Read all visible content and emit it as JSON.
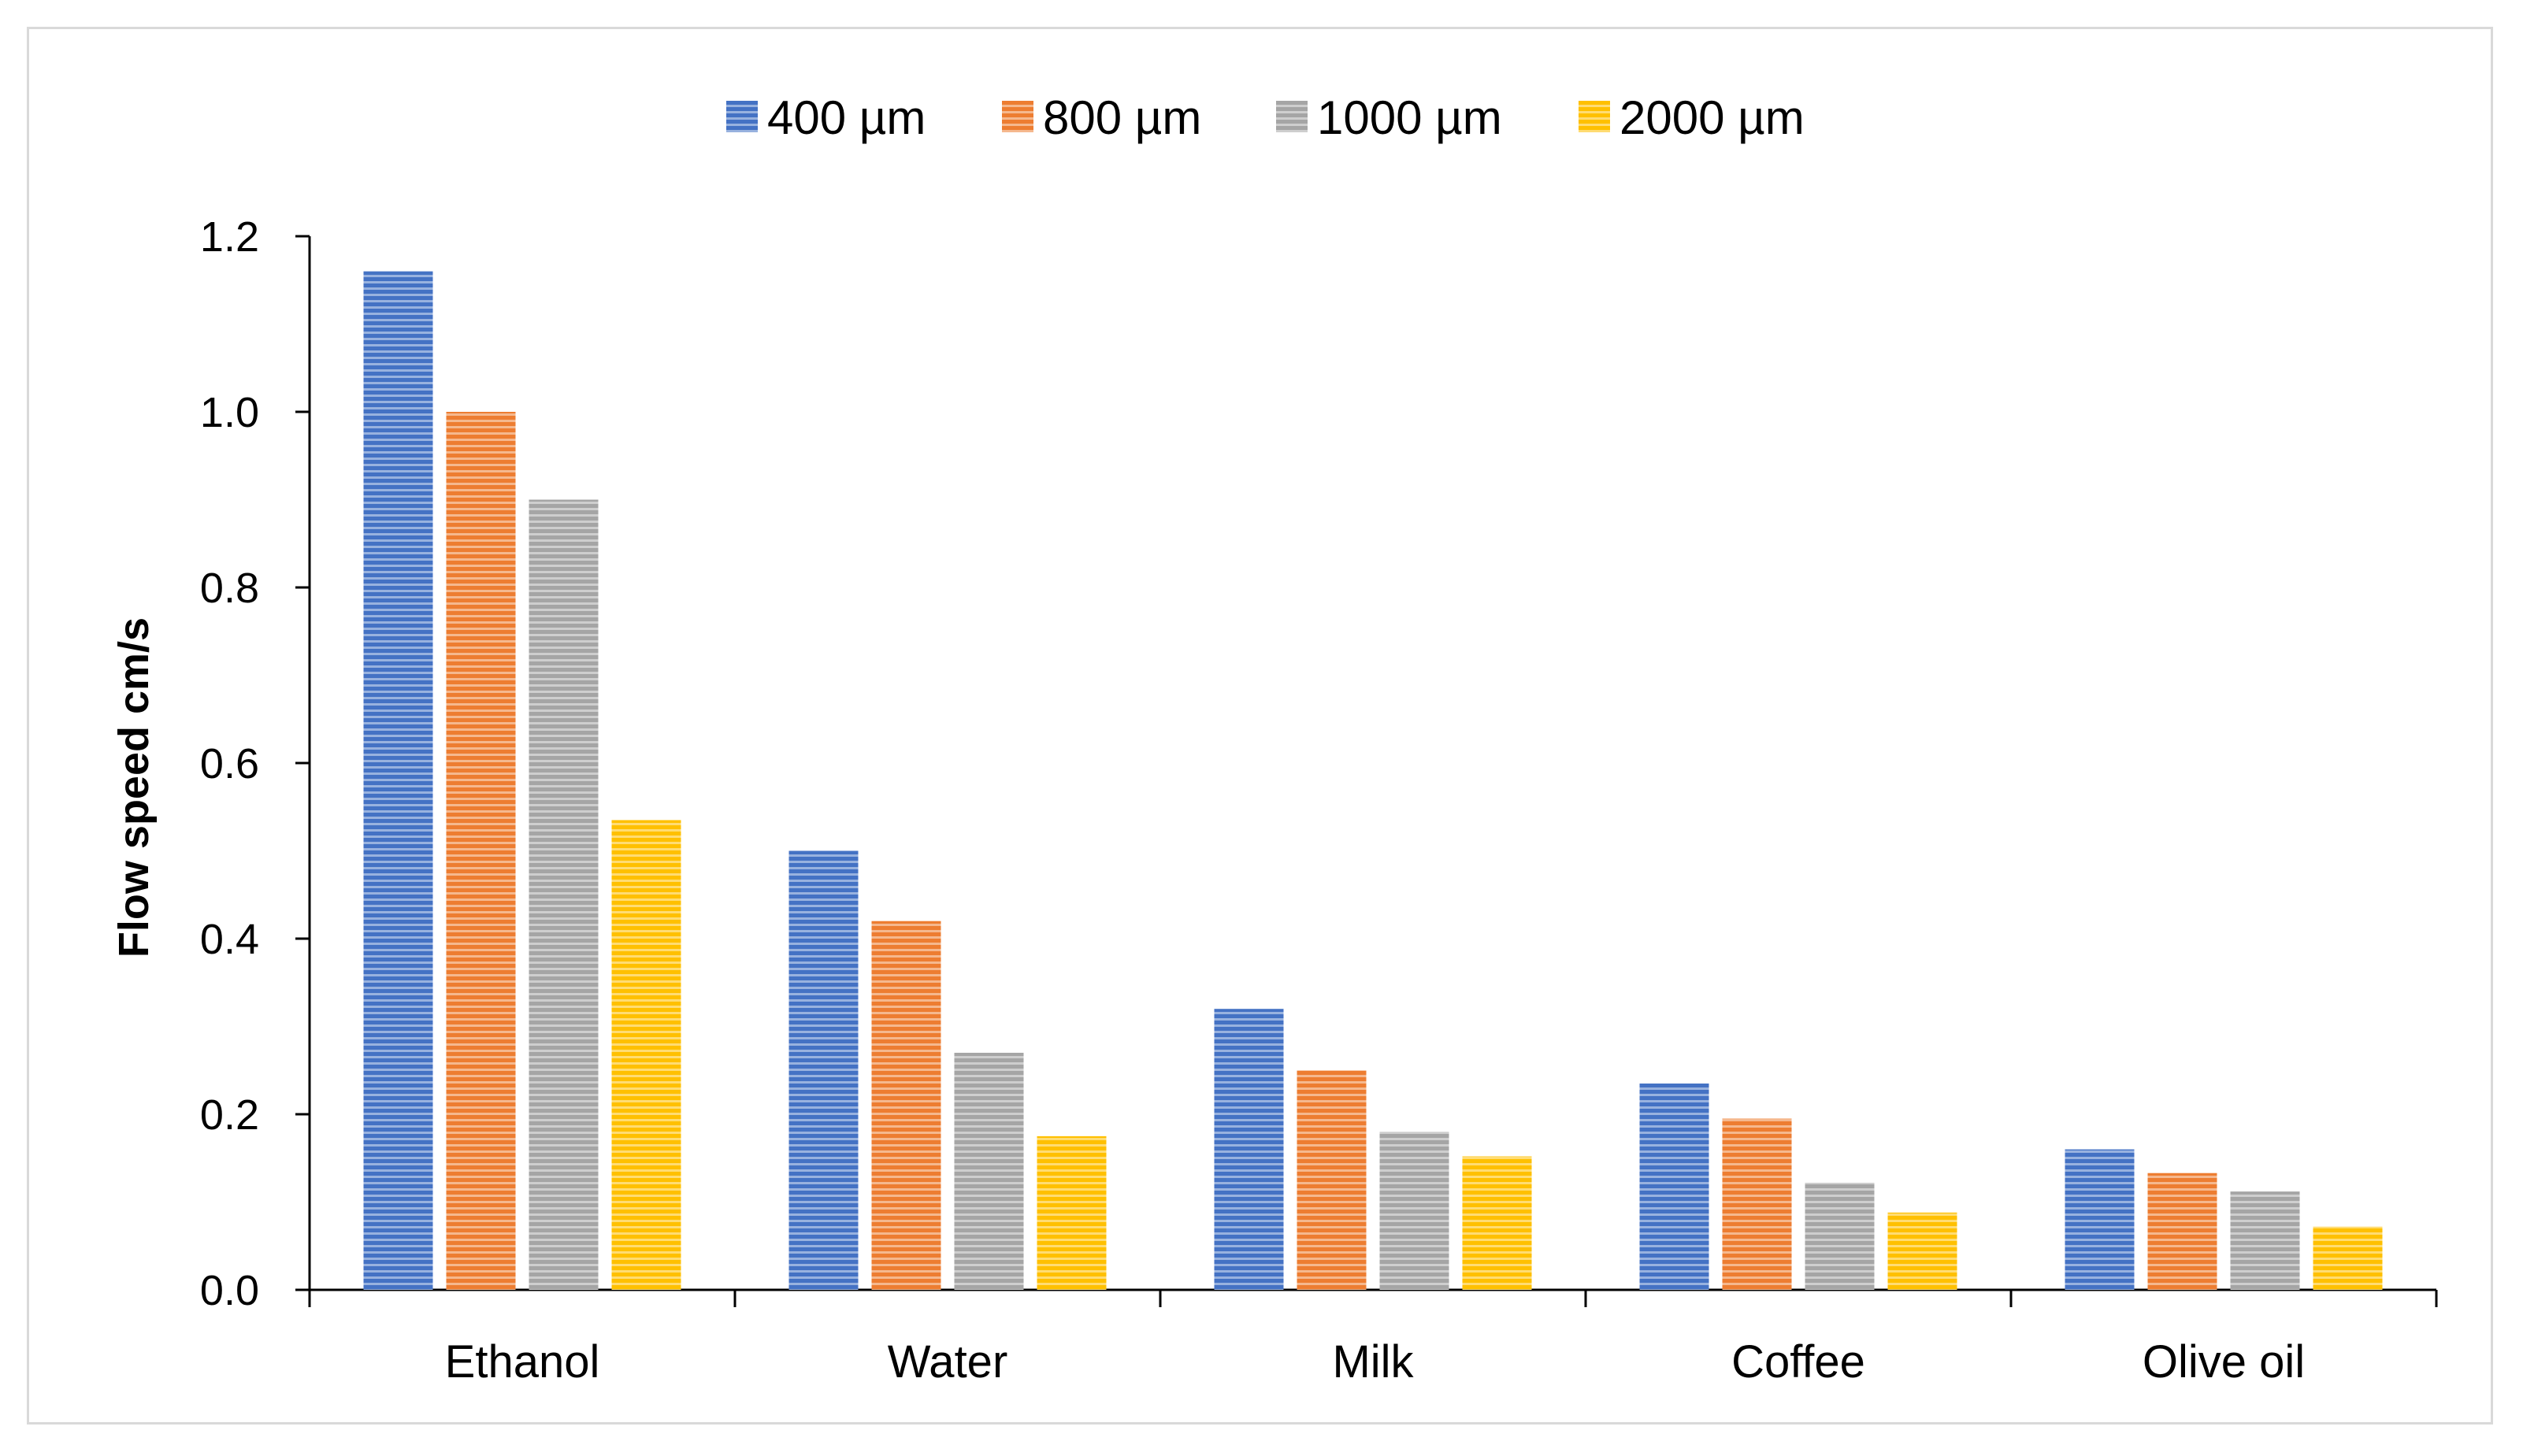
{
  "chart_data": {
    "type": "bar",
    "title": "",
    "xlabel": "",
    "ylabel": "Flow speed cm/s",
    "ylim": [
      0,
      1.2
    ],
    "yticks": [
      "0.0",
      "0.2",
      "0.4",
      "0.6",
      "0.8",
      "1.0",
      "1.2"
    ],
    "categories": [
      "Ethanol",
      "Water",
      "Milk",
      "Coffee",
      "Olive oil"
    ],
    "grid": false,
    "legend_position": "top-center",
    "bar_pattern": "horizontal-stripes",
    "series": [
      {
        "name": "400 µm",
        "color": "#4472c4",
        "values": [
          1.16,
          0.5,
          0.32,
          0.235,
          0.16
        ]
      },
      {
        "name": "800 µm",
        "color": "#ed7d31",
        "values": [
          1.0,
          0.42,
          0.25,
          0.195,
          0.133
        ]
      },
      {
        "name": "1000 µm",
        "color": "#a5a5a5",
        "values": [
          0.9,
          0.27,
          0.18,
          0.122,
          0.112
        ]
      },
      {
        "name": "2000 µm",
        "color": "#ffc000",
        "values": [
          0.535,
          0.175,
          0.152,
          0.088,
          0.072
        ]
      }
    ]
  }
}
